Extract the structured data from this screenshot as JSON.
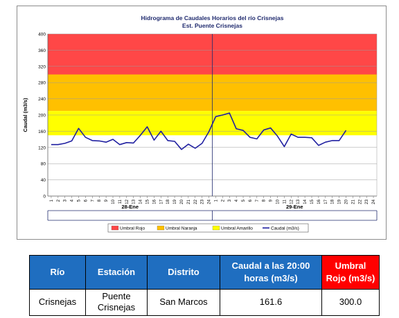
{
  "chart_data": {
    "type": "line",
    "title": "Hidrograma de Caudales Horarios del río Crisnejas",
    "subtitle": "Est. Puente Crisnejas",
    "ylabel": "Caudal  (m3/s)",
    "ylim": [
      0,
      400
    ],
    "yticks": [
      0,
      40,
      80,
      120,
      160,
      200,
      240,
      280,
      320,
      360,
      400
    ],
    "xticks": [
      "1",
      "2",
      "3",
      "4",
      "5",
      "6",
      "7",
      "8",
      "9",
      "10",
      "11",
      "12",
      "13",
      "14",
      "15",
      "16",
      "17",
      "18",
      "19",
      "20",
      "21",
      "22",
      "23",
      "24",
      "1",
      "2",
      "3",
      "4",
      "5",
      "6",
      "7",
      "8",
      "9",
      "10",
      "11",
      "12",
      "13",
      "14",
      "15",
      "16",
      "17",
      "18",
      "19",
      "20",
      "21",
      "22",
      "23",
      "24"
    ],
    "day_labels": [
      "28-Ene",
      "29-Ene"
    ],
    "grid": true,
    "legend_position": "bottom",
    "bands": [
      {
        "name": "Umbral Rojo",
        "from": 300,
        "to": 400,
        "color": "#ff4747"
      },
      {
        "name": "Umbral Naranja",
        "from": 210,
        "to": 300,
        "color": "#ffc000"
      },
      {
        "name": "Umbral Amarillo",
        "from": 150,
        "to": 210,
        "color": "#ffff00"
      }
    ],
    "series": [
      {
        "name": "Caudal (m3/s)",
        "color": "#1f1fa0",
        "values": [
          127,
          127,
          130,
          136,
          167,
          145,
          137,
          136,
          133,
          140,
          127,
          132,
          131,
          150,
          171,
          138,
          160,
          137,
          135,
          115,
          128,
          118,
          130,
          159,
          196,
          200,
          205,
          166,
          162,
          145,
          141,
          163,
          168,
          148,
          122,
          153,
          145,
          145,
          144,
          125,
          133,
          137,
          137,
          162
        ]
      }
    ],
    "legend": [
      "Umbral Rojo",
      "Umbral Naranja",
      "Umbral Amarillo",
      "Caudal (m3/s)"
    ]
  },
  "table": {
    "headers": [
      "Río",
      "Estación",
      "Distrito",
      "Caudal a las 20:00 horas (m3/s)",
      "Umbral Rojo (m3/s)"
    ],
    "row": [
      "Crisnejas",
      "Puente Crisnejas",
      "San Marcos",
      "161.6",
      "300.0"
    ]
  },
  "colors": {
    "header_blue": "#1f6ec0",
    "header_red": "#ff0000",
    "line": "#1f1fa0"
  }
}
